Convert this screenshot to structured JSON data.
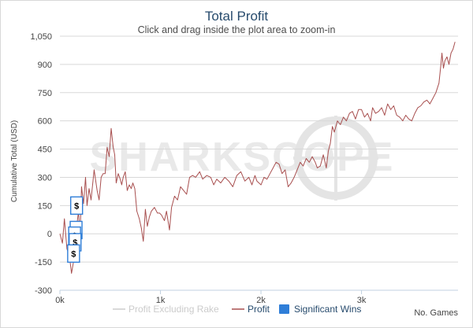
{
  "chart_data": {
    "type": "line",
    "title": "Total Profit",
    "subtitle": "Click and drag inside the plot area to zoom-in",
    "ylabel": "Cumulative Total (USD)",
    "xlabel": "No. Games",
    "xlim": [
      0,
      3960
    ],
    "ylim": [
      -300,
      1050
    ],
    "x_ticks": [
      {
        "value": 0,
        "label": "0k"
      },
      {
        "value": 1000,
        "label": "1k"
      },
      {
        "value": 2000,
        "label": "2k"
      },
      {
        "value": 3000,
        "label": "3k"
      }
    ],
    "y_ticks": [
      {
        "value": 1050,
        "label": "1,050"
      },
      {
        "value": 900,
        "label": "900"
      },
      {
        "value": 750,
        "label": "750"
      },
      {
        "value": 600,
        "label": "600"
      },
      {
        "value": 450,
        "label": "450"
      },
      {
        "value": 300,
        "label": "300"
      },
      {
        "value": 150,
        "label": "150"
      },
      {
        "value": 0,
        "label": "0"
      },
      {
        "value": -150,
        "label": "-150"
      },
      {
        "value": -300,
        "label": "-300"
      }
    ],
    "watermark": "SHARKSCOPE",
    "series": [
      {
        "name": "Profit",
        "color": "#a84f4f",
        "points": [
          [
            0,
            0
          ],
          [
            25,
            -50
          ],
          [
            45,
            80
          ],
          [
            70,
            -80
          ],
          [
            95,
            -120
          ],
          [
            115,
            -210
          ],
          [
            135,
            -150
          ],
          [
            150,
            -50
          ],
          [
            165,
            30
          ],
          [
            185,
            120
          ],
          [
            200,
            -20
          ],
          [
            215,
            250
          ],
          [
            235,
            160
          ],
          [
            255,
            300
          ],
          [
            270,
            150
          ],
          [
            290,
            240
          ],
          [
            310,
            180
          ],
          [
            340,
            340
          ],
          [
            370,
            230
          ],
          [
            390,
            180
          ],
          [
            410,
            300
          ],
          [
            430,
            320
          ],
          [
            450,
            320
          ],
          [
            470,
            460
          ],
          [
            490,
            410
          ],
          [
            510,
            560
          ],
          [
            530,
            460
          ],
          [
            545,
            420
          ],
          [
            560,
            270
          ],
          [
            580,
            320
          ],
          [
            600,
            290
          ],
          [
            615,
            260
          ],
          [
            630,
            300
          ],
          [
            650,
            330
          ],
          [
            670,
            230
          ],
          [
            690,
            260
          ],
          [
            710,
            240
          ],
          [
            725,
            270
          ],
          [
            745,
            240
          ],
          [
            765,
            120
          ],
          [
            790,
            80
          ],
          [
            810,
            30
          ],
          [
            830,
            -40
          ],
          [
            850,
            130
          ],
          [
            870,
            40
          ],
          [
            890,
            90
          ],
          [
            910,
            120
          ],
          [
            940,
            140
          ],
          [
            970,
            110
          ],
          [
            990,
            110
          ],
          [
            1010,
            100
          ],
          [
            1040,
            70
          ],
          [
            1060,
            120
          ],
          [
            1090,
            20
          ],
          [
            1110,
            140
          ],
          [
            1140,
            200
          ],
          [
            1170,
            180
          ],
          [
            1200,
            250
          ],
          [
            1230,
            230
          ],
          [
            1260,
            210
          ],
          [
            1290,
            300
          ],
          [
            1320,
            310
          ],
          [
            1350,
            300
          ],
          [
            1390,
            330
          ],
          [
            1420,
            290
          ],
          [
            1460,
            310
          ],
          [
            1500,
            300
          ],
          [
            1530,
            260
          ],
          [
            1560,
            290
          ],
          [
            1600,
            270
          ],
          [
            1640,
            300
          ],
          [
            1680,
            280
          ],
          [
            1720,
            250
          ],
          [
            1760,
            310
          ],
          [
            1800,
            330
          ],
          [
            1840,
            280
          ],
          [
            1880,
            300
          ],
          [
            1910,
            260
          ],
          [
            1940,
            310
          ],
          [
            1960,
            280
          ],
          [
            2000,
            260
          ],
          [
            2030,
            300
          ],
          [
            2060,
            290
          ],
          [
            2090,
            320
          ],
          [
            2120,
            350
          ],
          [
            2150,
            380
          ],
          [
            2180,
            370
          ],
          [
            2210,
            320
          ],
          [
            2240,
            340
          ],
          [
            2270,
            250
          ],
          [
            2300,
            270
          ],
          [
            2330,
            300
          ],
          [
            2360,
            340
          ],
          [
            2390,
            380
          ],
          [
            2420,
            360
          ],
          [
            2450,
            400
          ],
          [
            2480,
            380
          ],
          [
            2510,
            410
          ],
          [
            2540,
            380
          ],
          [
            2560,
            350
          ],
          [
            2590,
            360
          ],
          [
            2620,
            420
          ],
          [
            2650,
            350
          ],
          [
            2670,
            440
          ],
          [
            2690,
            480
          ],
          [
            2710,
            570
          ],
          [
            2730,
            540
          ],
          [
            2760,
            600
          ],
          [
            2790,
            580
          ],
          [
            2820,
            620
          ],
          [
            2850,
            600
          ],
          [
            2880,
            640
          ],
          [
            2910,
            650
          ],
          [
            2940,
            610
          ],
          [
            2970,
            660
          ],
          [
            3000,
            660
          ],
          [
            3030,
            620
          ],
          [
            3060,
            640
          ],
          [
            3090,
            600
          ],
          [
            3110,
            670
          ],
          [
            3140,
            640
          ],
          [
            3170,
            650
          ],
          [
            3200,
            670
          ],
          [
            3230,
            630
          ],
          [
            3260,
            690
          ],
          [
            3290,
            660
          ],
          [
            3320,
            680
          ],
          [
            3350,
            630
          ],
          [
            3380,
            620
          ],
          [
            3410,
            600
          ],
          [
            3440,
            630
          ],
          [
            3470,
            610
          ],
          [
            3500,
            600
          ],
          [
            3530,
            640
          ],
          [
            3560,
            670
          ],
          [
            3590,
            680
          ],
          [
            3620,
            700
          ],
          [
            3650,
            710
          ],
          [
            3680,
            690
          ],
          [
            3710,
            720
          ],
          [
            3740,
            750
          ],
          [
            3770,
            800
          ],
          [
            3790,
            900
          ],
          [
            3800,
            960
          ],
          [
            3815,
            880
          ],
          [
            3830,
            920
          ],
          [
            3850,
            940
          ],
          [
            3870,
            900
          ],
          [
            3890,
            960
          ],
          [
            3910,
            980
          ],
          [
            3930,
            1020
          ]
        ]
      }
    ],
    "significant_wins": [
      {
        "x": 170,
        "y": 150,
        "label": "$"
      },
      {
        "x": 165,
        "y": 20,
        "label": "$"
      },
      {
        "x": 150,
        "y": -10,
        "label": "$"
      },
      {
        "x": 155,
        "y": -45,
        "label": "$"
      },
      {
        "x": 140,
        "y": -105,
        "label": "$"
      }
    ],
    "legend": {
      "position": "bottom",
      "items": [
        {
          "label": "Profit Excluding Rake",
          "color": "#cccccc",
          "style": "line",
          "state": "disabled"
        },
        {
          "label": "Profit",
          "color": "#a84f4f",
          "style": "line",
          "state": "active"
        },
        {
          "label": "Significant Wins",
          "color": "#2f7ed8",
          "style": "box",
          "state": "active"
        }
      ]
    }
  }
}
